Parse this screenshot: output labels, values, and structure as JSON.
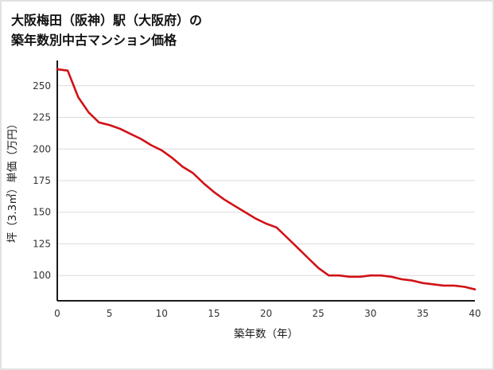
{
  "title_line1": "大阪梅田（阪神）駅（大阪府）の",
  "title_line2": "築年数別中古マンション価格",
  "chart_data": {
    "type": "line",
    "title": "大阪梅田（阪神）駅（大阪府）の築年数別中古マンション価格",
    "xlabel": "築年数（年）",
    "ylabel": "坪（3.3㎡）単価（万円）",
    "x": [
      0,
      1,
      2,
      3,
      4,
      5,
      6,
      7,
      8,
      9,
      10,
      11,
      12,
      13,
      14,
      15,
      16,
      17,
      18,
      19,
      20,
      21,
      22,
      23,
      24,
      25,
      26,
      27,
      28,
      29,
      30,
      31,
      32,
      33,
      34,
      35,
      36,
      37,
      38,
      39,
      40
    ],
    "values": [
      263,
      262,
      241,
      229,
      221,
      219,
      216,
      212,
      208,
      203,
      199,
      193,
      186,
      181,
      173,
      166,
      160,
      155,
      150,
      145,
      141,
      138,
      130,
      122,
      114,
      106,
      100,
      100,
      99,
      99,
      100,
      100,
      99,
      97,
      96,
      94,
      93,
      92,
      92,
      91,
      89
    ],
    "xlim": [
      0,
      40
    ],
    "ylim": [
      80,
      270
    ],
    "xticks": [
      0,
      5,
      10,
      15,
      20,
      25,
      30,
      35,
      40
    ],
    "yticks": [
      100,
      125,
      150,
      175,
      200,
      225,
      250
    ],
    "grid": "horizontal",
    "legend": "none",
    "line_color": "#d01216",
    "axis_color": "#1a1a1a",
    "grid_color": "#dcdcdc",
    "background": "#ffffff"
  }
}
